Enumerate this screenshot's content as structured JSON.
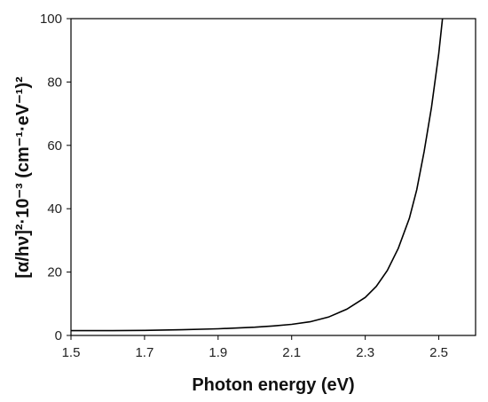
{
  "chart_data": {
    "type": "line",
    "xlabel": "Photon energy (eV)",
    "ylabel": "[α/hν]²·10⁻³ (cm⁻¹·eV⁻¹)²",
    "xlim": [
      1.5,
      2.6
    ],
    "ylim": [
      0,
      100
    ],
    "x_ticks": [
      "1.5",
      "1.7",
      "1.9",
      "2.1",
      "2.3",
      "2.5"
    ],
    "y_ticks": [
      "0",
      "20",
      "40",
      "60",
      "80",
      "100"
    ],
    "grid": false,
    "legend": "none",
    "line_color": "#000000",
    "series": [
      {
        "x": [
          1.5,
          1.6,
          1.7,
          1.8,
          1.9,
          2.0,
          2.05,
          2.1,
          2.15,
          2.2,
          2.25,
          2.3,
          2.33,
          2.36,
          2.39,
          2.42,
          2.44,
          2.46,
          2.48,
          2.5,
          2.51
        ],
        "values": [
          1.5,
          1.5,
          1.6,
          1.8,
          2.1,
          2.6,
          3.0,
          3.5,
          4.3,
          5.8,
          8.3,
          12.0,
          15.5,
          20.5,
          27.5,
          37.0,
          46.0,
          58.0,
          72.0,
          89.0,
          100.0
        ]
      }
    ]
  }
}
